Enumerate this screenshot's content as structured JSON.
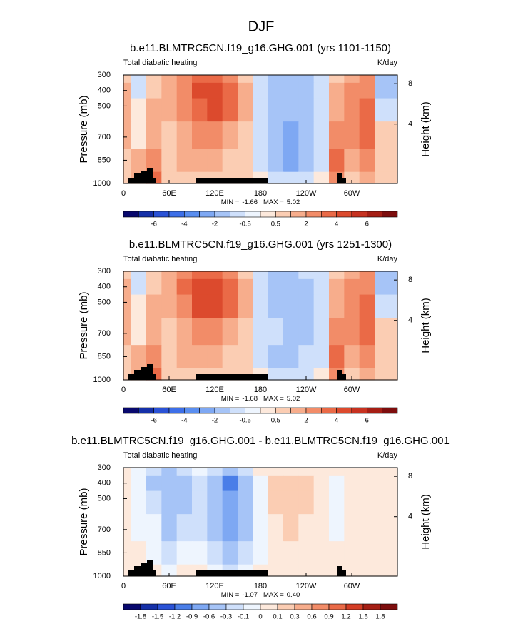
{
  "title": "DJF",
  "chart_data": [
    {
      "type": "contour",
      "title": "b.e11.BLMTRC5CN.f19_g16.GHG.001 (yrs 1101-1150)",
      "subtitle_left": "Total diabatic heating",
      "subtitle_right": "K/day",
      "ylabel": "Pressure (mb)",
      "y2label": "Height (km)",
      "x": [
        0,
        20,
        40,
        60,
        80,
        100,
        120,
        140,
        160,
        180,
        200,
        220,
        240,
        260,
        280,
        300,
        320,
        340
      ],
      "y": [
        300,
        400,
        500,
        700,
        850,
        1000
      ],
      "z": [
        [
          0.7,
          -0.7,
          0.7,
          1.5,
          2.5,
          3.5,
          3.5,
          2.5,
          0.7,
          -0.7,
          -1.5,
          -1.5,
          -1.5,
          -0.7,
          0.7,
          1.5,
          2.5,
          -1.5
        ],
        [
          1.5,
          -0.7,
          0.7,
          1.5,
          2.5,
          4.5,
          4.5,
          3.5,
          1.5,
          -0.7,
          -1.5,
          -1.5,
          -1.5,
          -0.7,
          1.5,
          2.5,
          2.5,
          -1.5
        ],
        [
          1.5,
          0.2,
          1.5,
          1.5,
          2.5,
          3.5,
          4.5,
          3.5,
          1.5,
          -0.7,
          -1.5,
          -1.5,
          -1.5,
          -0.7,
          1.5,
          2.5,
          3.5,
          -0.7
        ],
        [
          1.5,
          0.2,
          1.5,
          0.7,
          1.5,
          2.5,
          2.5,
          1.5,
          0.7,
          -0.7,
          -1.5,
          -2.5,
          -1.5,
          -0.7,
          2.5,
          2.5,
          3.5,
          0.7
        ],
        [
          0.7,
          1.5,
          2.5,
          0.7,
          1.5,
          1.5,
          1.5,
          0.7,
          0.7,
          -0.7,
          -1.5,
          -2.5,
          -1.5,
          -0.7,
          3.5,
          1.5,
          2.5,
          0.7
        ],
        [
          0.7,
          1.5,
          3.5,
          0.7,
          0.7,
          0.7,
          0.7,
          0.7,
          0.7,
          0.2,
          -0.7,
          -0.7,
          -0.7,
          0.2,
          2.5,
          0.7,
          1.5,
          0.7
        ]
      ],
      "xlim": [
        0,
        360
      ],
      "ylim": [
        1000,
        300
      ],
      "xticks": [
        0,
        {
          "value": 60,
          "label": "60E"
        },
        {
          "value": 120,
          "label": "120E"
        },
        180,
        {
          "value": 240,
          "label": "120W"
        },
        {
          "value": 300,
          "label": "60W"
        }
      ],
      "yticks": [
        300,
        400,
        500,
        700,
        850,
        1000
      ],
      "y2ticks": [
        8,
        4
      ],
      "min_label": "MIN =",
      "min": -1.66,
      "max_label": "MAX =",
      "max": 5.02,
      "levels": [
        {
          "value": -7,
          "label": null
        },
        -6,
        {
          "value": -5,
          "label": null
        },
        -4,
        {
          "value": -3,
          "label": null
        },
        -2,
        {
          "value": -1,
          "label": null
        },
        -0.5,
        {
          "value": 0,
          "label": null
        },
        0.5,
        {
          "value": 1,
          "label": null
        },
        2,
        {
          "value": 3,
          "label": null
        },
        4,
        {
          "value": 5,
          "label": null
        },
        6,
        {
          "value": 7,
          "label": null
        }
      ],
      "colors": [
        "#08086e",
        "#1530a8",
        "#2a52d6",
        "#3d6fe8",
        "#5a8ef0",
        "#7ea8f3",
        "#a6c4f7",
        "#cfe0fb",
        "#eef5fe",
        "#fde9dc",
        "#fbcdb3",
        "#f7ad8c",
        "#f28c68",
        "#ea6a47",
        "#dc4a2d",
        "#c73220",
        "#a51e14",
        "#7d0d0d"
      ]
    },
    {
      "type": "contour",
      "title": "b.e11.BLMTRC5CN.f19_g16.GHG.001 (yrs 1251-1300)",
      "subtitle_left": "Total diabatic heating",
      "subtitle_right": "K/day",
      "ylabel": "Pressure (mb)",
      "y2label": "Height (km)",
      "x": [
        0,
        20,
        40,
        60,
        80,
        100,
        120,
        140,
        160,
        180,
        200,
        220,
        240,
        260,
        280,
        300,
        320,
        340
      ],
      "y": [
        300,
        400,
        500,
        700,
        850,
        1000
      ],
      "z": [
        [
          0.7,
          -0.7,
          0.7,
          1.5,
          2.5,
          3.5,
          3.5,
          2.5,
          0.7,
          -0.7,
          -1.5,
          -1.5,
          -0.7,
          -0.7,
          0.7,
          1.5,
          2.5,
          -1.5
        ],
        [
          1.5,
          -0.7,
          0.7,
          1.5,
          3.5,
          4.5,
          4.5,
          3.5,
          1.5,
          -0.7,
          -1.5,
          -1.5,
          -1.5,
          -0.7,
          1.5,
          2.5,
          2.5,
          -1.5
        ],
        [
          1.5,
          0.2,
          1.5,
          1.5,
          2.5,
          4.5,
          4.5,
          3.5,
          1.5,
          -0.7,
          -1.5,
          -1.5,
          -1.5,
          -0.7,
          1.5,
          2.5,
          3.5,
          -0.7
        ],
        [
          1.5,
          0.2,
          1.5,
          0.7,
          1.5,
          2.5,
          2.5,
          1.5,
          0.7,
          -0.7,
          -0.7,
          -1.5,
          -1.5,
          -0.7,
          2.5,
          2.5,
          3.5,
          0.7
        ],
        [
          0.7,
          1.5,
          2.5,
          0.7,
          1.5,
          1.5,
          1.5,
          0.7,
          0.7,
          -0.7,
          -1.5,
          -1.5,
          -0.7,
          -0.7,
          3.5,
          1.5,
          2.5,
          0.7
        ],
        [
          0.7,
          1.5,
          3.5,
          0.7,
          0.7,
          0.7,
          0.7,
          0.7,
          0.7,
          0.2,
          -0.7,
          -0.7,
          -0.7,
          0.2,
          2.5,
          0.7,
          1.5,
          0.7
        ]
      ],
      "xlim": [
        0,
        360
      ],
      "ylim": [
        1000,
        300
      ],
      "xticks": [
        0,
        {
          "value": 60,
          "label": "60E"
        },
        {
          "value": 120,
          "label": "120E"
        },
        180,
        {
          "value": 240,
          "label": "120W"
        },
        {
          "value": 300,
          "label": "60W"
        }
      ],
      "yticks": [
        300,
        400,
        500,
        700,
        850,
        1000
      ],
      "y2ticks": [
        8,
        4
      ],
      "min_label": "MIN =",
      "min": -1.68,
      "max_label": "MAX =",
      "max": 5.02,
      "levels": [
        {
          "value": -7,
          "label": null
        },
        -6,
        {
          "value": -5,
          "label": null
        },
        -4,
        {
          "value": -3,
          "label": null
        },
        -2,
        {
          "value": -1,
          "label": null
        },
        -0.5,
        {
          "value": 0,
          "label": null
        },
        0.5,
        {
          "value": 1,
          "label": null
        },
        2,
        {
          "value": 3,
          "label": null
        },
        4,
        {
          "value": 5,
          "label": null
        },
        6,
        {
          "value": 7,
          "label": null
        }
      ],
      "colors": [
        "#08086e",
        "#1530a8",
        "#2a52d6",
        "#3d6fe8",
        "#5a8ef0",
        "#7ea8f3",
        "#a6c4f7",
        "#cfe0fb",
        "#eef5fe",
        "#fde9dc",
        "#fbcdb3",
        "#f7ad8c",
        "#f28c68",
        "#ea6a47",
        "#dc4a2d",
        "#c73220",
        "#a51e14",
        "#7d0d0d"
      ]
    },
    {
      "type": "contour",
      "title": "b.e11.BLMTRC5CN.f19_g16.GHG.001 - b.e11.BLMTRC5CN.f19_g16.GHG.001",
      "subtitle_left": "Total diabatic heating",
      "subtitle_right": "K/day",
      "ylabel": "Pressure (mb)",
      "y2label": "Height (km)",
      "x": [
        0,
        20,
        40,
        60,
        80,
        100,
        120,
        140,
        160,
        180,
        200,
        220,
        240,
        260,
        280,
        300,
        320,
        340
      ],
      "y": [
        300,
        400,
        500,
        700,
        850,
        1000
      ],
      "z": [
        [
          0.05,
          -0.05,
          -0.2,
          -0.35,
          -0.2,
          -0.05,
          -0.2,
          -0.45,
          -0.2,
          0.05,
          0.05,
          0.05,
          0.05,
          0.05,
          0.05,
          0.05,
          0.05,
          0.05
        ],
        [
          0.05,
          -0.05,
          -0.35,
          -0.45,
          -0.35,
          -0.2,
          -0.45,
          -0.95,
          -0.45,
          -0.05,
          0.15,
          0.2,
          0.15,
          0.05,
          -0.05,
          0.05,
          0.05,
          0.05
        ],
        [
          0.05,
          -0.05,
          -0.2,
          -0.5,
          -0.35,
          -0.2,
          -0.5,
          -0.8,
          -0.5,
          -0.05,
          0.15,
          0.2,
          0.2,
          0.05,
          -0.05,
          0.05,
          0.05,
          0.05
        ],
        [
          0.05,
          -0.05,
          -0.05,
          -0.35,
          -0.2,
          -0.2,
          -0.45,
          -0.65,
          -0.35,
          -0.05,
          0.05,
          0.15,
          0.05,
          0.05,
          -0.05,
          0.05,
          0.05,
          0.05
        ],
        [
          0.05,
          0.05,
          -0.05,
          -0.2,
          -0.05,
          -0.05,
          -0.2,
          -0.45,
          -0.2,
          -0.05,
          0.05,
          0.05,
          0.05,
          0.05,
          0.05,
          0.05,
          0.05,
          0.05
        ],
        [
          0.05,
          0.05,
          0.05,
          -0.05,
          0.05,
          0.05,
          -0.05,
          -0.2,
          -0.05,
          0.05,
          0.05,
          0.05,
          0.05,
          0.05,
          0.05,
          0.05,
          0.05,
          0.05
        ]
      ],
      "xlim": [
        0,
        360
      ],
      "ylim": [
        1000,
        300
      ],
      "xticks": [
        0,
        {
          "value": 60,
          "label": "60E"
        },
        {
          "value": 120,
          "label": "120E"
        },
        180,
        {
          "value": 240,
          "label": "120W"
        },
        {
          "value": 300,
          "label": "60W"
        }
      ],
      "yticks": [
        300,
        400,
        500,
        700,
        850,
        1000
      ],
      "y2ticks": [
        8,
        4
      ],
      "min_label": "MIN =",
      "min": -1.07,
      "max_label": "MAX =",
      "max": {
        "value": 0.4,
        "label": "0.40"
      },
      "levels": [
        -1.8,
        -1.5,
        -1.2,
        -0.9,
        -0.6,
        -0.3,
        -0.1,
        0,
        0.1,
        0.3,
        0.6,
        0.9,
        1.2,
        1.5,
        1.8
      ],
      "colors": [
        "#08086e",
        "#1530a8",
        "#2a52d6",
        "#4a7ee8",
        "#7ea8f3",
        "#a6c4f7",
        "#cfe0fb",
        "#eef5fe",
        "#fde9dc",
        "#fbcdb3",
        "#f7ad8c",
        "#f28c68",
        "#ea6a47",
        "#d43d25",
        "#a51e14",
        "#7d0d0d"
      ]
    }
  ]
}
